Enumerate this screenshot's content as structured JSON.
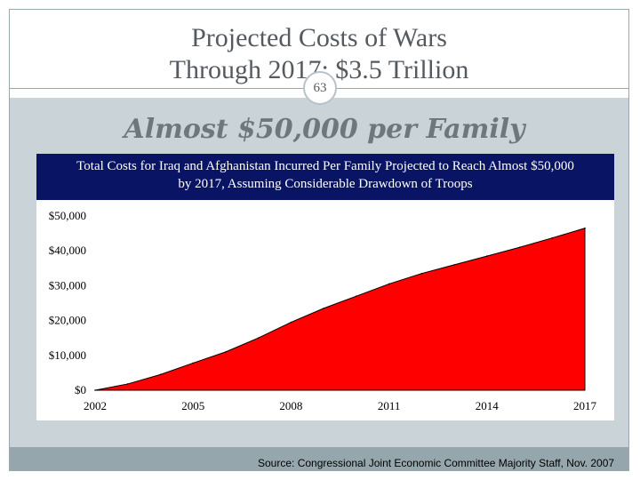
{
  "slide": {
    "title_line1": "Projected Costs of Wars",
    "title_line2": "Through 2017: $3.5 Trillion",
    "slide_number": "63",
    "subtitle": "Almost $50,000 per Family",
    "source": "Source: Congressional Joint Economic Committee Majority Staff, Nov. 2007"
  },
  "colors": {
    "header_bg": "#0a1464",
    "area_fill": "#ff0000",
    "panel_bg": "#c9d3d8",
    "footer_bg": "#95a6ac"
  },
  "chart_data": {
    "type": "area",
    "title_line1": "Total Costs for Iraq and Afghanistan Incurred Per Family Projected to Reach Almost $50,000",
    "title_line2": "by 2017, Assuming Considerable Drawdown of Troops",
    "xlabel": "",
    "ylabel": "",
    "x_ticks": [
      "2002",
      "2005",
      "2008",
      "2011",
      "2014",
      "2017"
    ],
    "y_ticks": [
      "$0",
      "$10,000",
      "$20,000",
      "$30,000",
      "$40,000",
      "$50,000"
    ],
    "xlim": [
      2002,
      2017
    ],
    "ylim": [
      0,
      50000
    ],
    "grid": false,
    "legend": "none",
    "series": [
      {
        "x": [
          2002,
          2003,
          2004,
          2005,
          2006,
          2007,
          2008,
          2009,
          2010,
          2011,
          2012,
          2013,
          2014,
          2015,
          2016,
          2017
        ],
        "values": [
          0,
          1800,
          4500,
          7800,
          11000,
          15000,
          19500,
          23500,
          27000,
          30500,
          33500,
          36000,
          38500,
          41000,
          43700,
          46500
        ]
      }
    ]
  }
}
